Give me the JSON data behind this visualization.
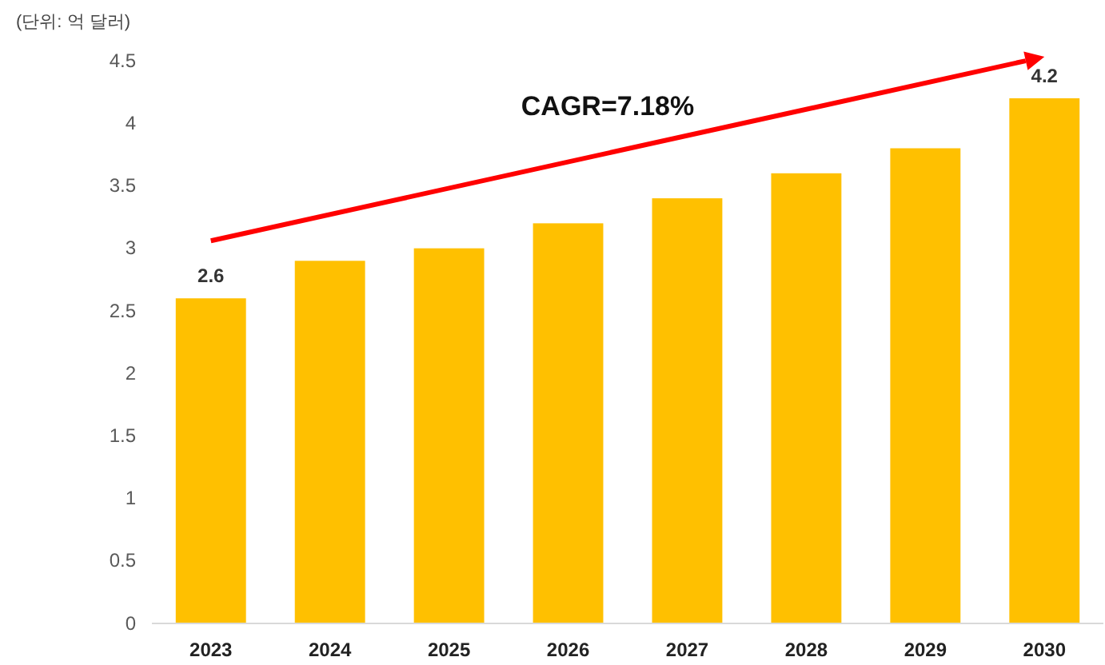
{
  "chart_data": {
    "type": "bar",
    "ylabel": "(단위: 억 달러)",
    "categories": [
      "2023",
      "2024",
      "2025",
      "2026",
      "2027",
      "2028",
      "2029",
      "2030"
    ],
    "values": [
      2.6,
      2.9,
      3.0,
      3.2,
      3.4,
      3.6,
      3.8,
      4.2
    ],
    "value_labels": [
      "2.6",
      null,
      null,
      null,
      null,
      null,
      null,
      "4.2"
    ],
    "color": "#ffc000",
    "ylim": [
      0,
      4.5
    ],
    "yticks": [
      0,
      0.5,
      1,
      1.5,
      2,
      2.5,
      3,
      3.5,
      4,
      4.5
    ],
    "grid": false,
    "annotations": [
      "CAGR=7.18%"
    ]
  }
}
